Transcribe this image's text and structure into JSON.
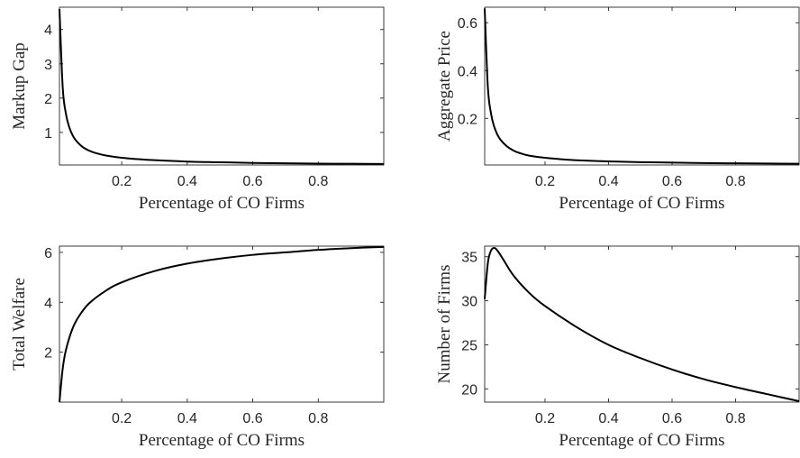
{
  "chart_data": [
    {
      "type": "line",
      "xlabel": "Percentage of CO Firms",
      "ylabel": "Markup Gap",
      "xlim": [
        0.01,
        1.0
      ],
      "ylim": [
        0.05,
        4.65
      ],
      "xticks": [
        0.2,
        0.4,
        0.6,
        0.8
      ],
      "yticks": [
        1,
        2,
        3,
        4
      ],
      "grid": false,
      "series": [
        {
          "x": [
            0.01,
            0.02,
            0.03,
            0.04,
            0.05,
            0.06,
            0.08,
            0.1,
            0.12,
            0.15,
            0.2,
            0.25,
            0.3,
            0.4,
            0.5,
            0.6,
            0.7,
            0.8,
            0.9,
            1.0
          ],
          "values": [
            4.6,
            2.3,
            1.53,
            1.15,
            0.92,
            0.77,
            0.58,
            0.47,
            0.4,
            0.33,
            0.26,
            0.22,
            0.19,
            0.15,
            0.13,
            0.11,
            0.1,
            0.09,
            0.085,
            0.08
          ]
        }
      ]
    },
    {
      "type": "line",
      "xlabel": "Percentage of CO Firms",
      "ylabel": "Aggregate Price",
      "xlim": [
        0.01,
        1.0
      ],
      "ylim": [
        0.005,
        0.665
      ],
      "xticks": [
        0.2,
        0.4,
        0.6,
        0.8
      ],
      "yticks": [
        0.2,
        0.4,
        0.6
      ],
      "grid": false,
      "series": [
        {
          "x": [
            0.01,
            0.02,
            0.03,
            0.04,
            0.05,
            0.06,
            0.08,
            0.1,
            0.12,
            0.15,
            0.2,
            0.25,
            0.3,
            0.4,
            0.5,
            0.6,
            0.7,
            0.8,
            0.9,
            1.0
          ],
          "values": [
            0.66,
            0.33,
            0.22,
            0.165,
            0.132,
            0.11,
            0.083,
            0.066,
            0.055,
            0.044,
            0.035,
            0.029,
            0.025,
            0.02,
            0.017,
            0.015,
            0.013,
            0.012,
            0.011,
            0.01
          ]
        }
      ]
    },
    {
      "type": "line",
      "xlabel": "Percentage of CO Firms",
      "ylabel": "Total Welfare",
      "xlim": [
        0.01,
        1.0
      ],
      "ylim": [
        0.0,
        6.25
      ],
      "xticks": [
        0.2,
        0.4,
        0.6,
        0.8
      ],
      "yticks": [
        2,
        4,
        6
      ],
      "grid": false,
      "series": [
        {
          "x": [
            0.01,
            0.02,
            0.03,
            0.05,
            0.07,
            0.1,
            0.15,
            0.2,
            0.3,
            0.4,
            0.5,
            0.6,
            0.7,
            0.8,
            0.9,
            1.0
          ],
          "values": [
            0.0,
            1.35,
            2.1,
            2.95,
            3.45,
            3.95,
            4.45,
            4.8,
            5.25,
            5.55,
            5.75,
            5.9,
            6.0,
            6.1,
            6.17,
            6.22
          ]
        }
      ]
    },
    {
      "type": "line",
      "xlabel": "Percentage of CO Firms",
      "ylabel": "Number of Firms",
      "xlim": [
        0.01,
        1.0
      ],
      "ylim": [
        18.5,
        36.2
      ],
      "xticks": [
        0.2,
        0.4,
        0.6,
        0.8
      ],
      "yticks": [
        20,
        25,
        30,
        35
      ],
      "grid": false,
      "series": [
        {
          "x": [
            0.01,
            0.02,
            0.03,
            0.04,
            0.05,
            0.07,
            0.1,
            0.15,
            0.2,
            0.3,
            0.4,
            0.5,
            0.6,
            0.7,
            0.8,
            0.9,
            1.0
          ],
          "values": [
            30.2,
            34.3,
            35.7,
            36.0,
            35.7,
            34.6,
            32.9,
            30.9,
            29.4,
            27.0,
            25.0,
            23.5,
            22.2,
            21.1,
            20.2,
            19.4,
            18.6
          ]
        }
      ]
    }
  ]
}
